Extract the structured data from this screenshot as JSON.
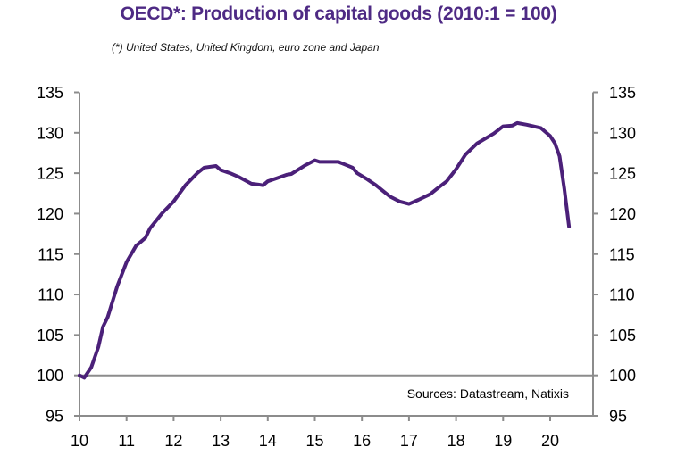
{
  "chart_data": {
    "type": "line",
    "title": "OECD*:  Production of capital goods (2010:1 = 100)",
    "subtitle": "(*) United States, United Kingdom, euro zone and Japan",
    "xlabel": "",
    "ylabel": "",
    "source": "Sources:  Datastream,  Natixis",
    "xlim": [
      10,
      20.9
    ],
    "ylim": [
      95,
      135
    ],
    "x_ticks": [
      "10",
      "11",
      "12",
      "13",
      "14",
      "15",
      "16",
      "17",
      "18",
      "19",
      "20"
    ],
    "y_ticks": [
      "95",
      "100",
      "105",
      "110",
      "115",
      "120",
      "125",
      "130",
      "135"
    ],
    "y_axis_both_sides": true,
    "reference_line": 100,
    "grid": false,
    "legend": "none",
    "line_color": "#4b2079",
    "series": [
      {
        "name": "Production of capital goods",
        "x": [
          10.0,
          10.1,
          10.25,
          10.4,
          10.5,
          10.6,
          10.8,
          11.0,
          11.2,
          11.4,
          11.5,
          11.75,
          12.0,
          12.25,
          12.5,
          12.65,
          12.9,
          13.0,
          13.2,
          13.4,
          13.65,
          13.8,
          13.9,
          14.0,
          14.2,
          14.4,
          14.5,
          14.8,
          15.0,
          15.1,
          15.3,
          15.5,
          15.8,
          15.9,
          16.1,
          16.3,
          16.6,
          16.8,
          17.0,
          17.2,
          17.45,
          17.6,
          17.8,
          18.0,
          18.2,
          18.45,
          18.8,
          19.0,
          19.2,
          19.3,
          19.5,
          19.8,
          20.0,
          20.1,
          20.2,
          20.3,
          20.4
        ],
        "values": [
          100.0,
          99.7,
          101.0,
          103.5,
          106.0,
          107.2,
          111.0,
          114.0,
          116.0,
          117.0,
          118.2,
          120.0,
          121.5,
          123.5,
          125.0,
          125.7,
          125.9,
          125.4,
          125.0,
          124.5,
          123.7,
          123.6,
          123.5,
          124.0,
          124.4,
          124.8,
          124.9,
          126.0,
          126.6,
          126.4,
          126.4,
          126.4,
          125.7,
          125.0,
          124.3,
          123.5,
          122.1,
          121.5,
          121.2,
          121.7,
          122.4,
          123.1,
          124.0,
          125.5,
          127.3,
          128.7,
          129.9,
          130.8,
          130.9,
          131.2,
          131.0,
          130.6,
          129.6,
          128.7,
          127.1,
          123.1,
          118.4
        ]
      }
    ]
  }
}
